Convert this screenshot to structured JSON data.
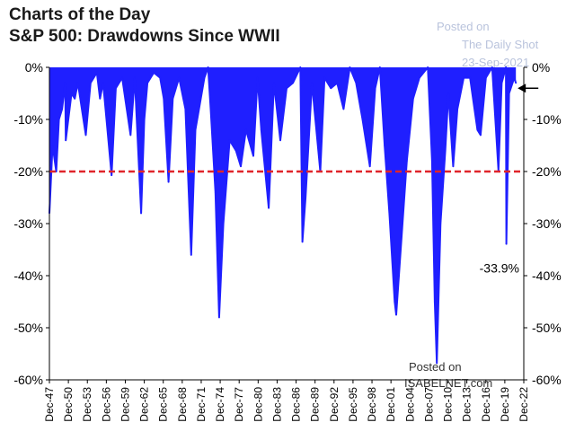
{
  "header": {
    "line1": "Charts of the Day",
    "line2": "S&P 500: Drawdowns Since WWII"
  },
  "watermark": {
    "posted": "Posted on",
    "source": "The Daily Shot",
    "date": "23-Sep-2021"
  },
  "credit": {
    "posted": "Posted on",
    "site": "ISABELNET.com"
  },
  "colors": {
    "series": "#1f1fff",
    "threshold": "#e0242a",
    "annotation": "#000000"
  },
  "chart_data": {
    "type": "area",
    "title": "S&P 500: Drawdowns Since WWII",
    "xlabel": "",
    "ylabel": "",
    "ylim": [
      -60,
      0
    ],
    "xlim": [
      "Dec-47",
      "Dec-22"
    ],
    "y_ticks": [
      0,
      -10,
      -20,
      -30,
      -40,
      -50,
      -60
    ],
    "y_tick_labels": [
      "0%",
      "-10%",
      "-20%",
      "-30%",
      "-40%",
      "-50%",
      "-60%"
    ],
    "x_tick_labels": [
      "Dec-47",
      "Dec-50",
      "Dec-53",
      "Dec-56",
      "Dec-59",
      "Dec-62",
      "Dec-65",
      "Dec-68",
      "Dec-71",
      "Dec-74",
      "Dec-77",
      "Dec-80",
      "Dec-83",
      "Dec-86",
      "Dec-89",
      "Dec-92",
      "Dec-95",
      "Dec-98",
      "Dec-01",
      "Dec-04",
      "Dec-07",
      "Dec-10",
      "Dec-13",
      "Dec-16",
      "Dec-19",
      "Dec-22"
    ],
    "grid": false,
    "reference_line": {
      "y": -20,
      "style": "dashed"
    },
    "annotations": [
      {
        "text": "-33.9%",
        "x": "2020-03",
        "y": -33.9
      },
      {
        "text": "",
        "kind": "arrow",
        "x": "2021-09",
        "y": -4
      }
    ],
    "series": [
      {
        "x": [
          "1947-12",
          "1948-06",
          "1949-01",
          "1949-06",
          "1949-12",
          "1950-06",
          "1950-07",
          "1951-06",
          "1951-12",
          "1952-06",
          "1953-09",
          "1954-06",
          "1955-06",
          "1955-12",
          "1956-06",
          "1957-10",
          "1958-06",
          "1959-06",
          "1960-10",
          "1961-06",
          "1962-06",
          "1962-12",
          "1963-06",
          "1964-06",
          "1965-06",
          "1966-01",
          "1966-10",
          "1967-06",
          "1968-06",
          "1969-06",
          "1970-05",
          "1971-01",
          "1972-06",
          "1973-01",
          "1973-06",
          "1974-03",
          "1974-10",
          "1975-06",
          "1976-06",
          "1977-06",
          "1978-03",
          "1979-01",
          "1980-03",
          "1980-11",
          "1981-06",
          "1982-08",
          "1983-06",
          "1984-06",
          "1985-06",
          "1986-06",
          "1987-08",
          "1987-12",
          "1988-06",
          "1989-06",
          "1990-10",
          "1991-06",
          "1992-06",
          "1993-06",
          "1994-06",
          "1995-06",
          "1996-06",
          "1997-06",
          "1998-08",
          "1999-06",
          "2000-03",
          "2000-12",
          "2001-09",
          "2002-07",
          "2002-10",
          "2003-03",
          "2004-06",
          "2005-06",
          "2006-06",
          "2007-10",
          "2008-06",
          "2008-11",
          "2009-03",
          "2009-10",
          "2010-07",
          "2011-01",
          "2011-10",
          "2012-06",
          "2013-06",
          "2014-06",
          "2015-08",
          "2016-02",
          "2016-12",
          "2017-12",
          "2018-12",
          "2019-06",
          "2020-02",
          "2020-03",
          "2020-08",
          "2021-06",
          "2021-09"
        ],
        "y": [
          -28,
          -15,
          -20,
          -10,
          -8,
          -3,
          -14,
          -5,
          -6,
          -3,
          -13,
          -3,
          -1,
          -6,
          -3,
          -20.7,
          -4,
          -2,
          -13,
          -2,
          -28,
          -10,
          -3,
          -1,
          -2,
          -6,
          -22,
          -6,
          -2,
          -8,
          -36,
          -12,
          -2,
          0,
          -8,
          -24,
          -48,
          -30,
          -14,
          -16,
          -19,
          -12,
          -17,
          -2,
          -12,
          -27,
          -3,
          -14,
          -4,
          -3,
          0,
          -33.5,
          -25,
          -3,
          -20,
          -2,
          -4,
          -3,
          -8,
          0,
          -3,
          -10,
          -19,
          -4,
          0,
          -15,
          -28,
          -45,
          -47.5,
          -40,
          -18,
          -6,
          -2,
          0,
          -18,
          -45,
          -56.8,
          -30,
          -16,
          -5,
          -19,
          -8,
          -2,
          -2,
          -12,
          -13,
          -2,
          0,
          -19.8,
          -3,
          0,
          -33.9,
          -5,
          -2,
          -3
        ]
      }
    ]
  }
}
